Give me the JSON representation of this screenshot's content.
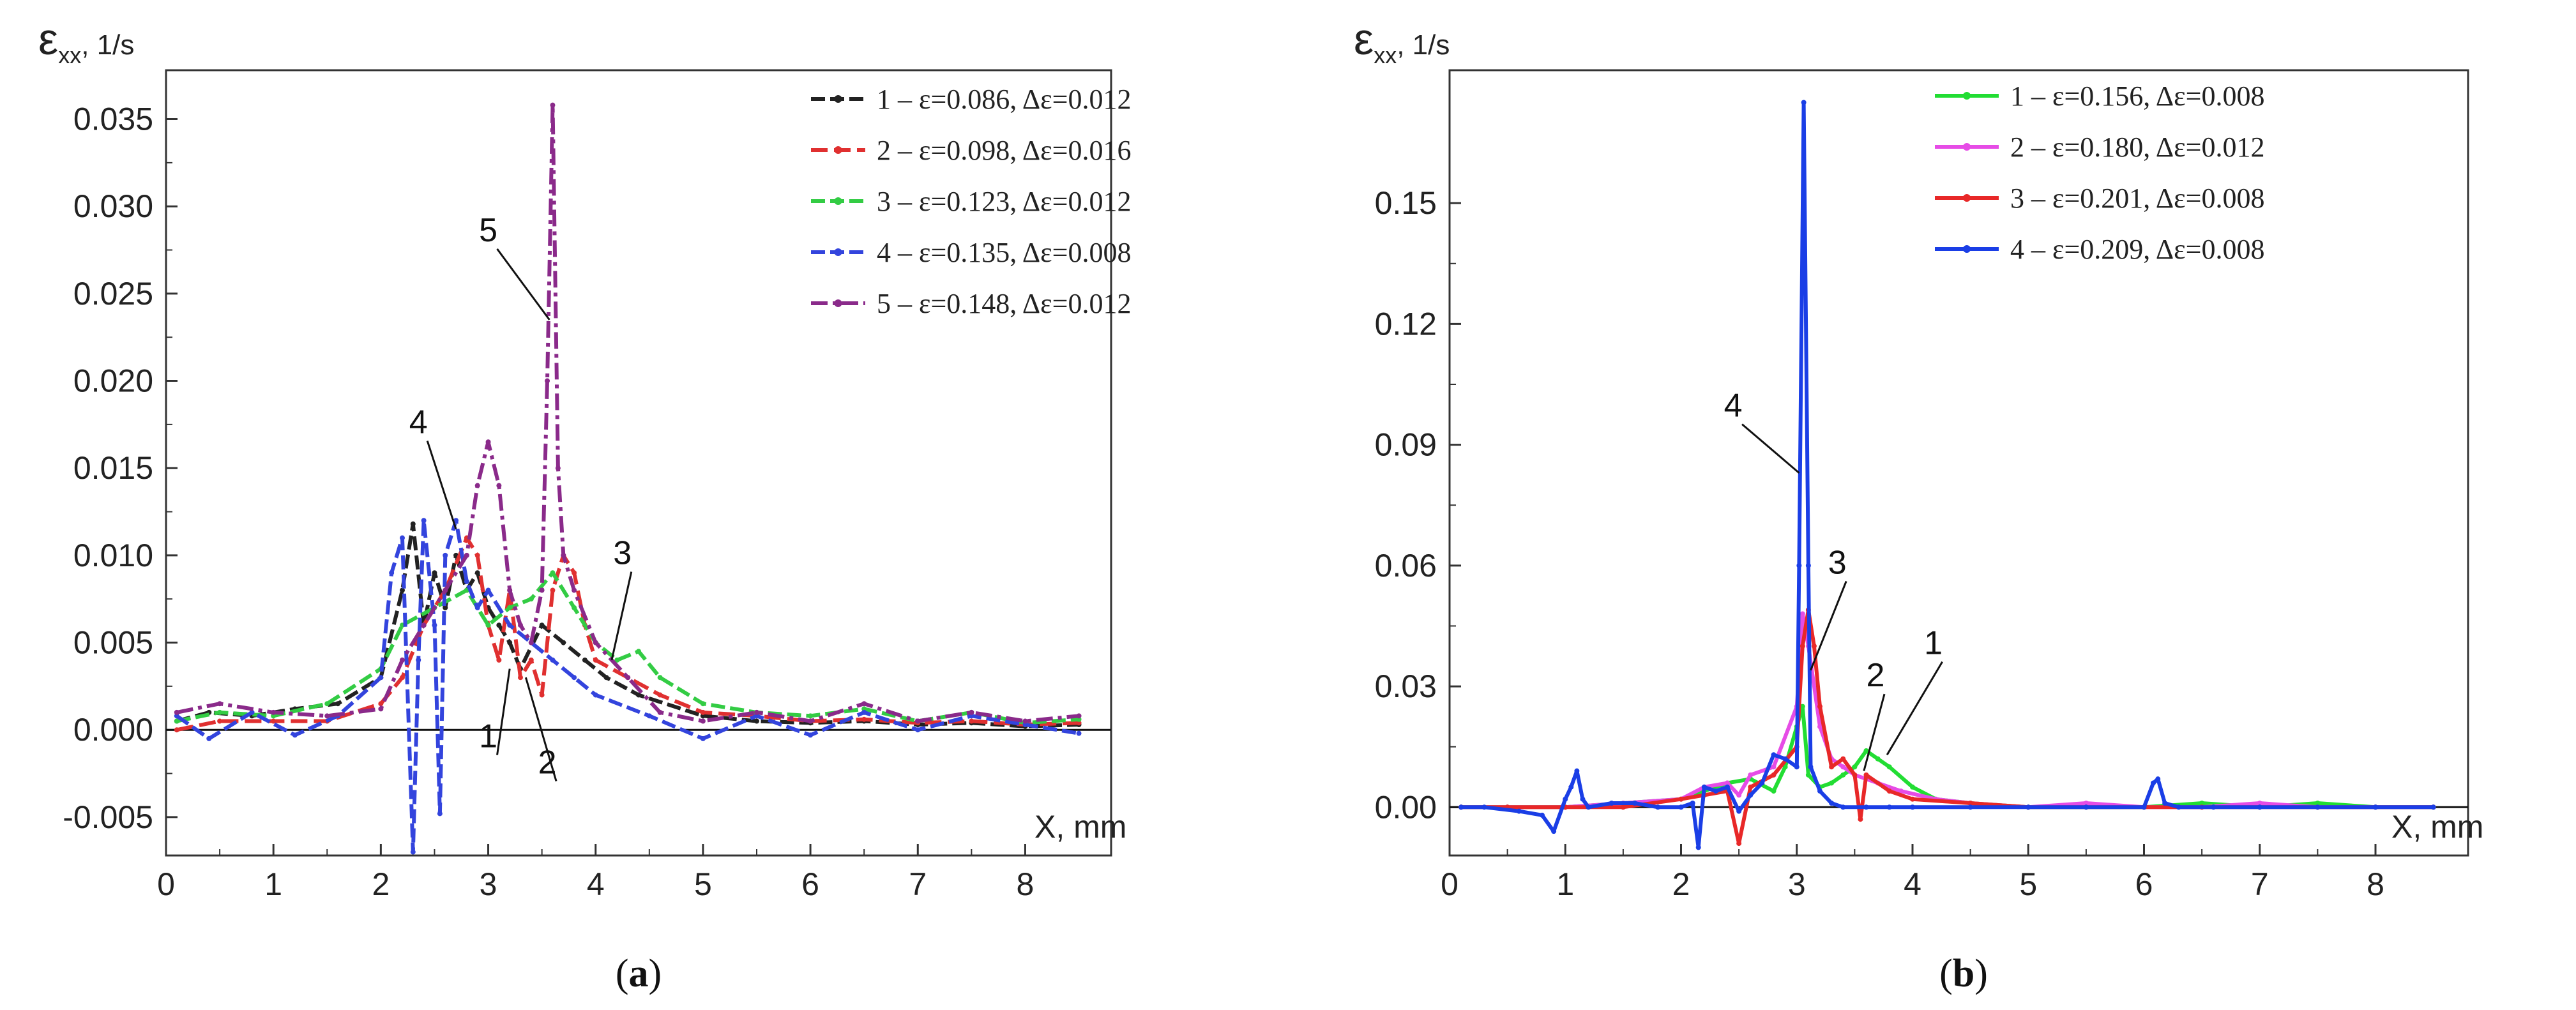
{
  "chart_data": [
    {
      "type": "line",
      "panel": "a",
      "caption_open": "(",
      "caption_letter": "a",
      "caption_close": ")",
      "ylabel_symbol": "ε",
      "ylabel_sub": "xx",
      "ylabel_unit": ", 1/s",
      "xlabel": "X, mm",
      "xlim": [
        0,
        8.8
      ],
      "ylim": [
        -0.0072,
        0.0378
      ],
      "xticks": [
        0,
        1,
        2,
        3,
        4,
        5,
        6,
        7,
        8
      ],
      "yticks": [
        -0.005,
        0.0,
        0.005,
        0.01,
        0.015,
        0.02,
        0.025,
        0.03,
        0.035
      ],
      "ytick_labels": [
        "-0.005",
        "0.000",
        "0.005",
        "0.010",
        "0.015",
        "0.020",
        "0.025",
        "0.030",
        "0.035"
      ],
      "zero_line": true,
      "series": [
        {
          "name": "1 – ε=0.086, Δε=0.012",
          "color": "#222222",
          "dash": "22,8",
          "x": [
            0.1,
            0.4,
            0.8,
            1.2,
            1.6,
            2.0,
            2.2,
            2.3,
            2.4,
            2.5,
            2.6,
            2.7,
            2.8,
            2.9,
            3.0,
            3.1,
            3.2,
            3.3,
            3.5,
            3.7,
            3.9,
            4.1,
            4.4,
            5.0,
            5.5,
            6.0,
            6.5,
            7.0,
            7.5,
            8.0,
            8.5
          ],
          "y": [
            0.0005,
            0.001,
            0.0008,
            0.0012,
            0.0015,
            0.003,
            0.008,
            0.0118,
            0.006,
            0.009,
            0.007,
            0.01,
            0.008,
            0.009,
            0.007,
            0.006,
            0.005,
            0.0035,
            0.006,
            0.005,
            0.004,
            0.003,
            0.002,
            0.0008,
            0.0005,
            0.0004,
            0.0005,
            0.0003,
            0.0004,
            0.0002,
            0.0003
          ]
        },
        {
          "name": "2 – ε=0.098, Δε=0.016",
          "color": "#e03030",
          "dash": "26,10",
          "x": [
            0.1,
            0.5,
            1.0,
            1.5,
            2.0,
            2.2,
            2.4,
            2.6,
            2.8,
            2.9,
            3.0,
            3.1,
            3.2,
            3.3,
            3.4,
            3.5,
            3.6,
            3.7,
            3.8,
            3.9,
            4.0,
            4.3,
            4.6,
            5.0,
            5.5,
            6.0,
            6.5,
            7.0,
            7.5,
            8.0,
            8.5
          ],
          "y": [
            0.0,
            0.0005,
            0.0005,
            0.0005,
            0.0015,
            0.003,
            0.006,
            0.008,
            0.011,
            0.01,
            0.006,
            0.004,
            0.008,
            0.003,
            0.004,
            0.002,
            0.008,
            0.01,
            0.009,
            0.006,
            0.004,
            0.003,
            0.002,
            0.001,
            0.0008,
            0.0005,
            0.0006,
            0.0004,
            0.0005,
            0.0003,
            0.0004
          ]
        },
        {
          "name": "3 – ε=0.123, Δε=0.012",
          "color": "#33cc44",
          "dash": "22,8",
          "x": [
            0.1,
            0.5,
            1.0,
            1.5,
            2.0,
            2.2,
            2.5,
            2.8,
            3.0,
            3.2,
            3.4,
            3.6,
            3.8,
            4.0,
            4.2,
            4.4,
            4.6,
            5.0,
            5.5,
            6.0,
            6.5,
            7.0,
            7.5,
            8.0,
            8.5
          ],
          "y": [
            0.0005,
            0.001,
            0.0008,
            0.0015,
            0.0035,
            0.006,
            0.007,
            0.008,
            0.006,
            0.007,
            0.0075,
            0.009,
            0.007,
            0.005,
            0.004,
            0.0045,
            0.003,
            0.0015,
            0.001,
            0.0008,
            0.0012,
            0.0005,
            0.001,
            0.0004,
            0.0006
          ]
        },
        {
          "name": "4 – ε=0.135, Δε=0.008",
          "color": "#3344dd",
          "dash": "22,8",
          "x": [
            0.1,
            0.4,
            0.8,
            1.2,
            1.6,
            2.0,
            2.1,
            2.2,
            2.3,
            2.35,
            2.4,
            2.5,
            2.55,
            2.6,
            2.7,
            2.8,
            2.9,
            3.0,
            3.2,
            3.4,
            3.6,
            3.8,
            4.0,
            4.5,
            5.0,
            5.5,
            6.0,
            6.5,
            7.0,
            7.5,
            8.0,
            8.5
          ],
          "y": [
            0.0008,
            -0.0005,
            0.001,
            -0.0003,
            0.0008,
            0.003,
            0.009,
            0.011,
            -0.007,
            0.004,
            0.012,
            0.006,
            -0.0048,
            0.01,
            0.012,
            0.0085,
            0.007,
            0.008,
            0.006,
            0.005,
            0.004,
            0.003,
            0.002,
            0.0008,
            -0.0005,
            0.0008,
            -0.0003,
            0.001,
            0.0,
            0.0008,
            0.0003,
            -0.0002
          ]
        },
        {
          "name": "5 – ε=0.148, Δε=0.012",
          "color": "#8a2a8a",
          "dash": "26,8,6,8",
          "x": [
            0.1,
            0.5,
            1.0,
            1.5,
            2.0,
            2.2,
            2.4,
            2.6,
            2.8,
            2.9,
            3.0,
            3.1,
            3.2,
            3.3,
            3.4,
            3.5,
            3.55,
            3.6,
            3.65,
            3.7,
            3.8,
            4.0,
            4.3,
            4.6,
            5.0,
            5.5,
            6.0,
            6.5,
            7.0,
            7.5,
            8.0,
            8.5
          ],
          "y": [
            0.001,
            0.0015,
            0.001,
            0.0008,
            0.0012,
            0.004,
            0.006,
            0.008,
            0.01,
            0.014,
            0.0165,
            0.014,
            0.008,
            0.006,
            0.005,
            0.008,
            0.02,
            0.0358,
            0.015,
            0.01,
            0.008,
            0.005,
            0.003,
            0.001,
            0.0005,
            0.001,
            0.0005,
            0.0015,
            0.0005,
            0.001,
            0.0005,
            0.0008
          ]
        }
      ],
      "annotations": [
        {
          "text": "5",
          "series": 4,
          "at_x": 3.57,
          "at_y": 0.0235,
          "label_x": 3.0,
          "label_y": 0.028
        },
        {
          "text": "4",
          "series": 3,
          "at_x": 2.7,
          "at_y": 0.0115,
          "label_x": 2.35,
          "label_y": 0.017
        },
        {
          "text": "3",
          "series": 2,
          "at_x": 4.15,
          "at_y": 0.004,
          "label_x": 4.25,
          "label_y": 0.0095
        },
        {
          "text": "1",
          "series": 0,
          "at_x": 3.2,
          "at_y": 0.0035,
          "label_x": 3.0,
          "label_y": -0.001
        },
        {
          "text": "2",
          "series": 1,
          "at_x": 3.35,
          "at_y": 0.003,
          "label_x": 3.55,
          "label_y": -0.0025
        }
      ]
    },
    {
      "type": "line",
      "panel": "b",
      "caption_open": "(",
      "caption_letter": "b",
      "caption_close": ")",
      "ylabel_symbol": "ε",
      "ylabel_sub": "xx",
      "ylabel_unit": ", 1/s",
      "xlabel": "X, mm",
      "xlim": [
        0,
        8.8
      ],
      "ylim": [
        -0.012,
        0.183
      ],
      "xticks": [
        0,
        1,
        2,
        3,
        4,
        5,
        6,
        7,
        8
      ],
      "yticks": [
        0.0,
        0.03,
        0.06,
        0.09,
        0.12,
        0.15
      ],
      "ytick_labels": [
        "0.00",
        "0.03",
        "0.06",
        "0.09",
        "0.12",
        "0.15"
      ],
      "zero_line": true,
      "series": [
        {
          "name": "1 – ε=0.156, Δε=0.008",
          "color": "#22dd33",
          "dash": "",
          "x": [
            0.1,
            0.5,
            1.0,
            1.5,
            2.0,
            2.2,
            2.4,
            2.6,
            2.8,
            2.9,
            3.0,
            3.05,
            3.1,
            3.2,
            3.3,
            3.4,
            3.5,
            3.6,
            3.7,
            3.8,
            4.0,
            4.2,
            4.5,
            5.0,
            5.5,
            6.0,
            6.5,
            7.0,
            7.5,
            8.0,
            8.5
          ],
          "y": [
            0.0,
            0.0,
            0.0,
            0.001,
            0.002,
            0.004,
            0.006,
            0.007,
            0.004,
            0.01,
            0.02,
            0.025,
            0.008,
            0.005,
            0.006,
            0.008,
            0.01,
            0.014,
            0.012,
            0.01,
            0.005,
            0.002,
            0.001,
            0.0,
            0.0,
            0.0,
            0.001,
            0.0,
            0.001,
            0.0,
            0.0
          ]
        },
        {
          "name": "2 – ε=0.180, Δε=0.012",
          "color": "#e64ce6",
          "dash": "",
          "x": [
            0.1,
            0.5,
            1.0,
            1.5,
            2.0,
            2.2,
            2.4,
            2.5,
            2.6,
            2.8,
            3.0,
            3.05,
            3.1,
            3.2,
            3.3,
            3.4,
            3.5,
            3.7,
            3.9,
            4.2,
            4.5,
            5.0,
            5.5,
            6.0,
            6.5,
            7.0,
            7.5,
            8.0,
            8.5
          ],
          "y": [
            0.0,
            0.0,
            0.0,
            0.001,
            0.002,
            0.005,
            0.006,
            0.003,
            0.008,
            0.01,
            0.025,
            0.048,
            0.04,
            0.02,
            0.012,
            0.01,
            0.008,
            0.006,
            0.004,
            0.002,
            0.001,
            0.0,
            0.001,
            0.0,
            0.0,
            0.001,
            0.0,
            0.0,
            0.0
          ]
        },
        {
          "name": "3 – ε=0.201, Δε=0.008",
          "color": "#e82828",
          "dash": "",
          "x": [
            0.1,
            0.5,
            1.0,
            1.5,
            2.0,
            2.2,
            2.4,
            2.5,
            2.6,
            2.8,
            3.0,
            3.05,
            3.1,
            3.15,
            3.2,
            3.3,
            3.4,
            3.5,
            3.55,
            3.6,
            3.8,
            4.0,
            4.5,
            5.0,
            5.5,
            6.0,
            6.5,
            7.0,
            7.5,
            8.0,
            8.5
          ],
          "y": [
            0.0,
            0.0,
            0.0,
            0.0,
            0.002,
            0.003,
            0.004,
            -0.009,
            0.005,
            0.008,
            0.015,
            0.04,
            0.049,
            0.04,
            0.025,
            0.01,
            0.012,
            0.008,
            -0.003,
            0.008,
            0.004,
            0.002,
            0.001,
            0.0,
            0.0,
            0.0,
            0.0,
            0.0,
            0.0,
            0.0,
            0.0
          ]
        },
        {
          "name": "4 – ε=0.209, Δε=0.008",
          "color": "#1a3ee6",
          "dash": "",
          "x": [
            0.1,
            0.3,
            0.6,
            0.8,
            0.9,
            1.0,
            1.05,
            1.1,
            1.15,
            1.2,
            1.4,
            1.6,
            1.8,
            2.0,
            2.1,
            2.15,
            2.2,
            2.3,
            2.4,
            2.5,
            2.6,
            2.7,
            2.8,
            2.9,
            3.0,
            3.02,
            3.06,
            3.1,
            3.12,
            3.2,
            3.3,
            3.4,
            3.6,
            3.8,
            4.0,
            4.5,
            5.0,
            5.5,
            6.0,
            6.08,
            6.12,
            6.18,
            6.3,
            6.6,
            7.0,
            7.5,
            8.0,
            8.5
          ],
          "y": [
            0.0,
            0.0,
            -0.001,
            -0.002,
            -0.006,
            0.002,
            0.005,
            0.009,
            0.002,
            0.0,
            0.001,
            0.001,
            0.0,
            0.0,
            0.001,
            -0.01,
            0.005,
            0.004,
            0.005,
            -0.001,
            0.003,
            0.006,
            0.013,
            0.012,
            0.01,
            0.06,
            0.175,
            0.06,
            0.01,
            0.004,
            0.001,
            0.0,
            0.0,
            0.0,
            0.0,
            0.0,
            0.0,
            0.0,
            0.0,
            0.006,
            0.007,
            0.001,
            0.0,
            0.0,
            0.0,
            0.0,
            0.0,
            0.0
          ]
        }
      ],
      "annotations": [
        {
          "text": "4",
          "series": 3,
          "at_x": 3.02,
          "at_y": 0.083,
          "label_x": 2.45,
          "label_y": 0.097
        },
        {
          "text": "3",
          "series": 2,
          "at_x": 3.12,
          "at_y": 0.034,
          "label_x": 3.35,
          "label_y": 0.058
        },
        {
          "text": "2",
          "series": 1,
          "at_x": 3.58,
          "at_y": 0.009,
          "label_x": 3.68,
          "label_y": 0.03
        },
        {
          "text": "1",
          "series": 0,
          "at_x": 3.78,
          "at_y": 0.013,
          "label_x": 4.18,
          "label_y": 0.038
        }
      ]
    }
  ]
}
